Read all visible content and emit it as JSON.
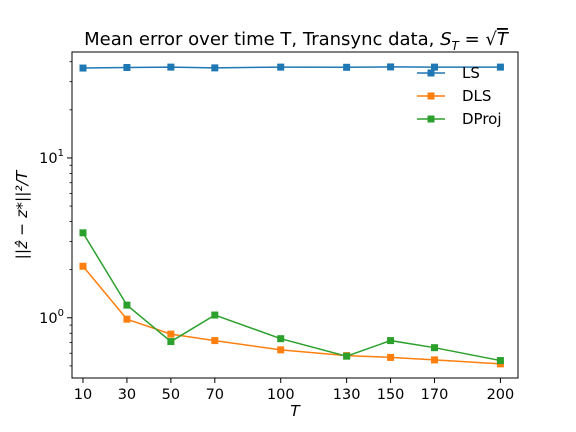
{
  "chart_data": {
    "type": "line",
    "title": "Mean error over time T, Transync data, S_T = √T",
    "title_parts": {
      "prefix": "Mean error over time T, Transync data, ",
      "var": "S",
      "sub": "T",
      "eq": " = ",
      "sqrt": "√",
      "sqrt_arg": "T"
    },
    "xlabel": "T",
    "ylabel": "||ẑ − z*||²/T",
    "y_scale": "log",
    "x_ticks": [
      10,
      30,
      50,
      70,
      100,
      130,
      150,
      170,
      200
    ],
    "y_tick_labels": [
      {
        "value": 1,
        "base": "10",
        "exp": "0"
      },
      {
        "value": 10,
        "base": "10",
        "exp": "1"
      }
    ],
    "xlim": [
      5,
      208
    ],
    "ylim": [
      0.42,
      46
    ],
    "grid": false,
    "legend_position": "top-right",
    "x": [
      10,
      30,
      50,
      70,
      100,
      130,
      150,
      170,
      200
    ],
    "series": [
      {
        "name": "LS",
        "color": "#1f77b4",
        "values": [
          36.5,
          36.8,
          37.0,
          36.6,
          37.0,
          36.9,
          37.1,
          37.0,
          37.0
        ]
      },
      {
        "name": "DLS",
        "color": "#ff7f0e",
        "values": [
          2.1,
          0.98,
          0.79,
          0.72,
          0.63,
          0.58,
          0.565,
          0.545,
          0.515
        ]
      },
      {
        "name": "DProj",
        "color": "#2ca02c",
        "values": [
          3.4,
          1.2,
          0.71,
          1.04,
          0.74,
          0.575,
          0.72,
          0.65,
          0.54
        ]
      }
    ]
  }
}
